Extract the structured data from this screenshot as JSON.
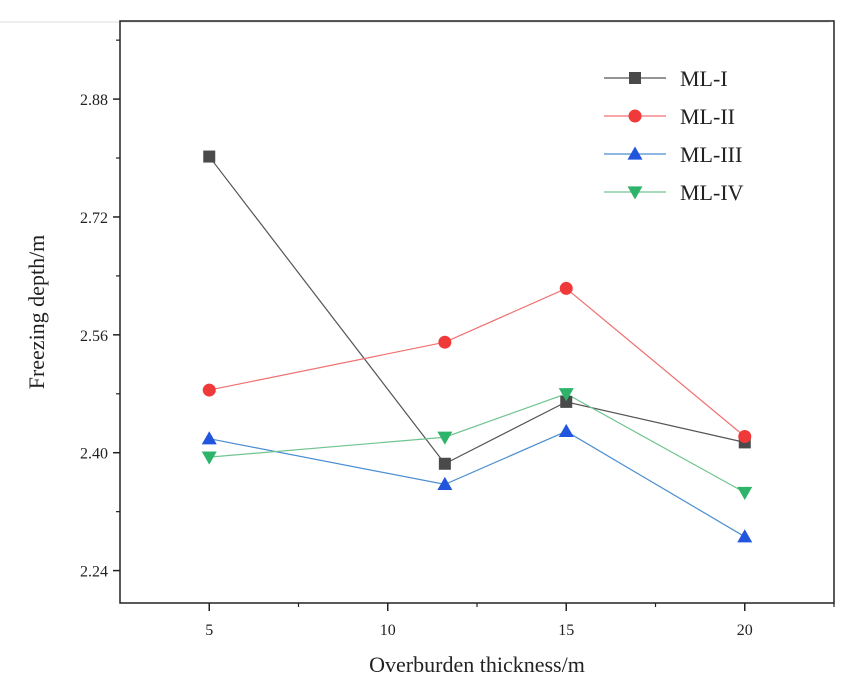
{
  "chart_data": {
    "type": "line",
    "title": "",
    "xlabel": "Overburden thickness/m",
    "ylabel": "Freezing depth/m",
    "xlim": [
      2.5,
      22.5
    ],
    "ylim": [
      2.196,
      2.986
    ],
    "x_ticks": [
      5,
      10,
      15,
      20
    ],
    "x_tick_labels": [
      "5",
      "10",
      "15",
      "20"
    ],
    "y_ticks": [
      2.24,
      2.4,
      2.56,
      2.72,
      2.88
    ],
    "y_tick_labels": [
      "2.24",
      "2.40",
      "2.56",
      "2.72",
      "2.88"
    ],
    "x": [
      5,
      11.6,
      15,
      20
    ],
    "legend_position": "top-right",
    "grid": false,
    "series": [
      {
        "name": "ML-I",
        "marker": "square",
        "color": "#4a4a4a",
        "line_color": "#555555",
        "values": [
          2.802,
          2.385,
          2.469,
          2.414
        ]
      },
      {
        "name": "ML-II",
        "marker": "circle",
        "color": "#f03a3a",
        "line_color": "#f07070",
        "values": [
          2.485,
          2.55,
          2.623,
          2.422
        ]
      },
      {
        "name": "ML-III",
        "marker": "triangle-up",
        "color": "#2255dd",
        "line_color": "#4a8ed0",
        "values": [
          2.419,
          2.357,
          2.429,
          2.286
        ]
      },
      {
        "name": "ML-IV",
        "marker": "triangle-down",
        "color": "#2db36a",
        "line_color": "#70c490",
        "values": [
          2.394,
          2.421,
          2.48,
          2.346
        ]
      }
    ]
  }
}
